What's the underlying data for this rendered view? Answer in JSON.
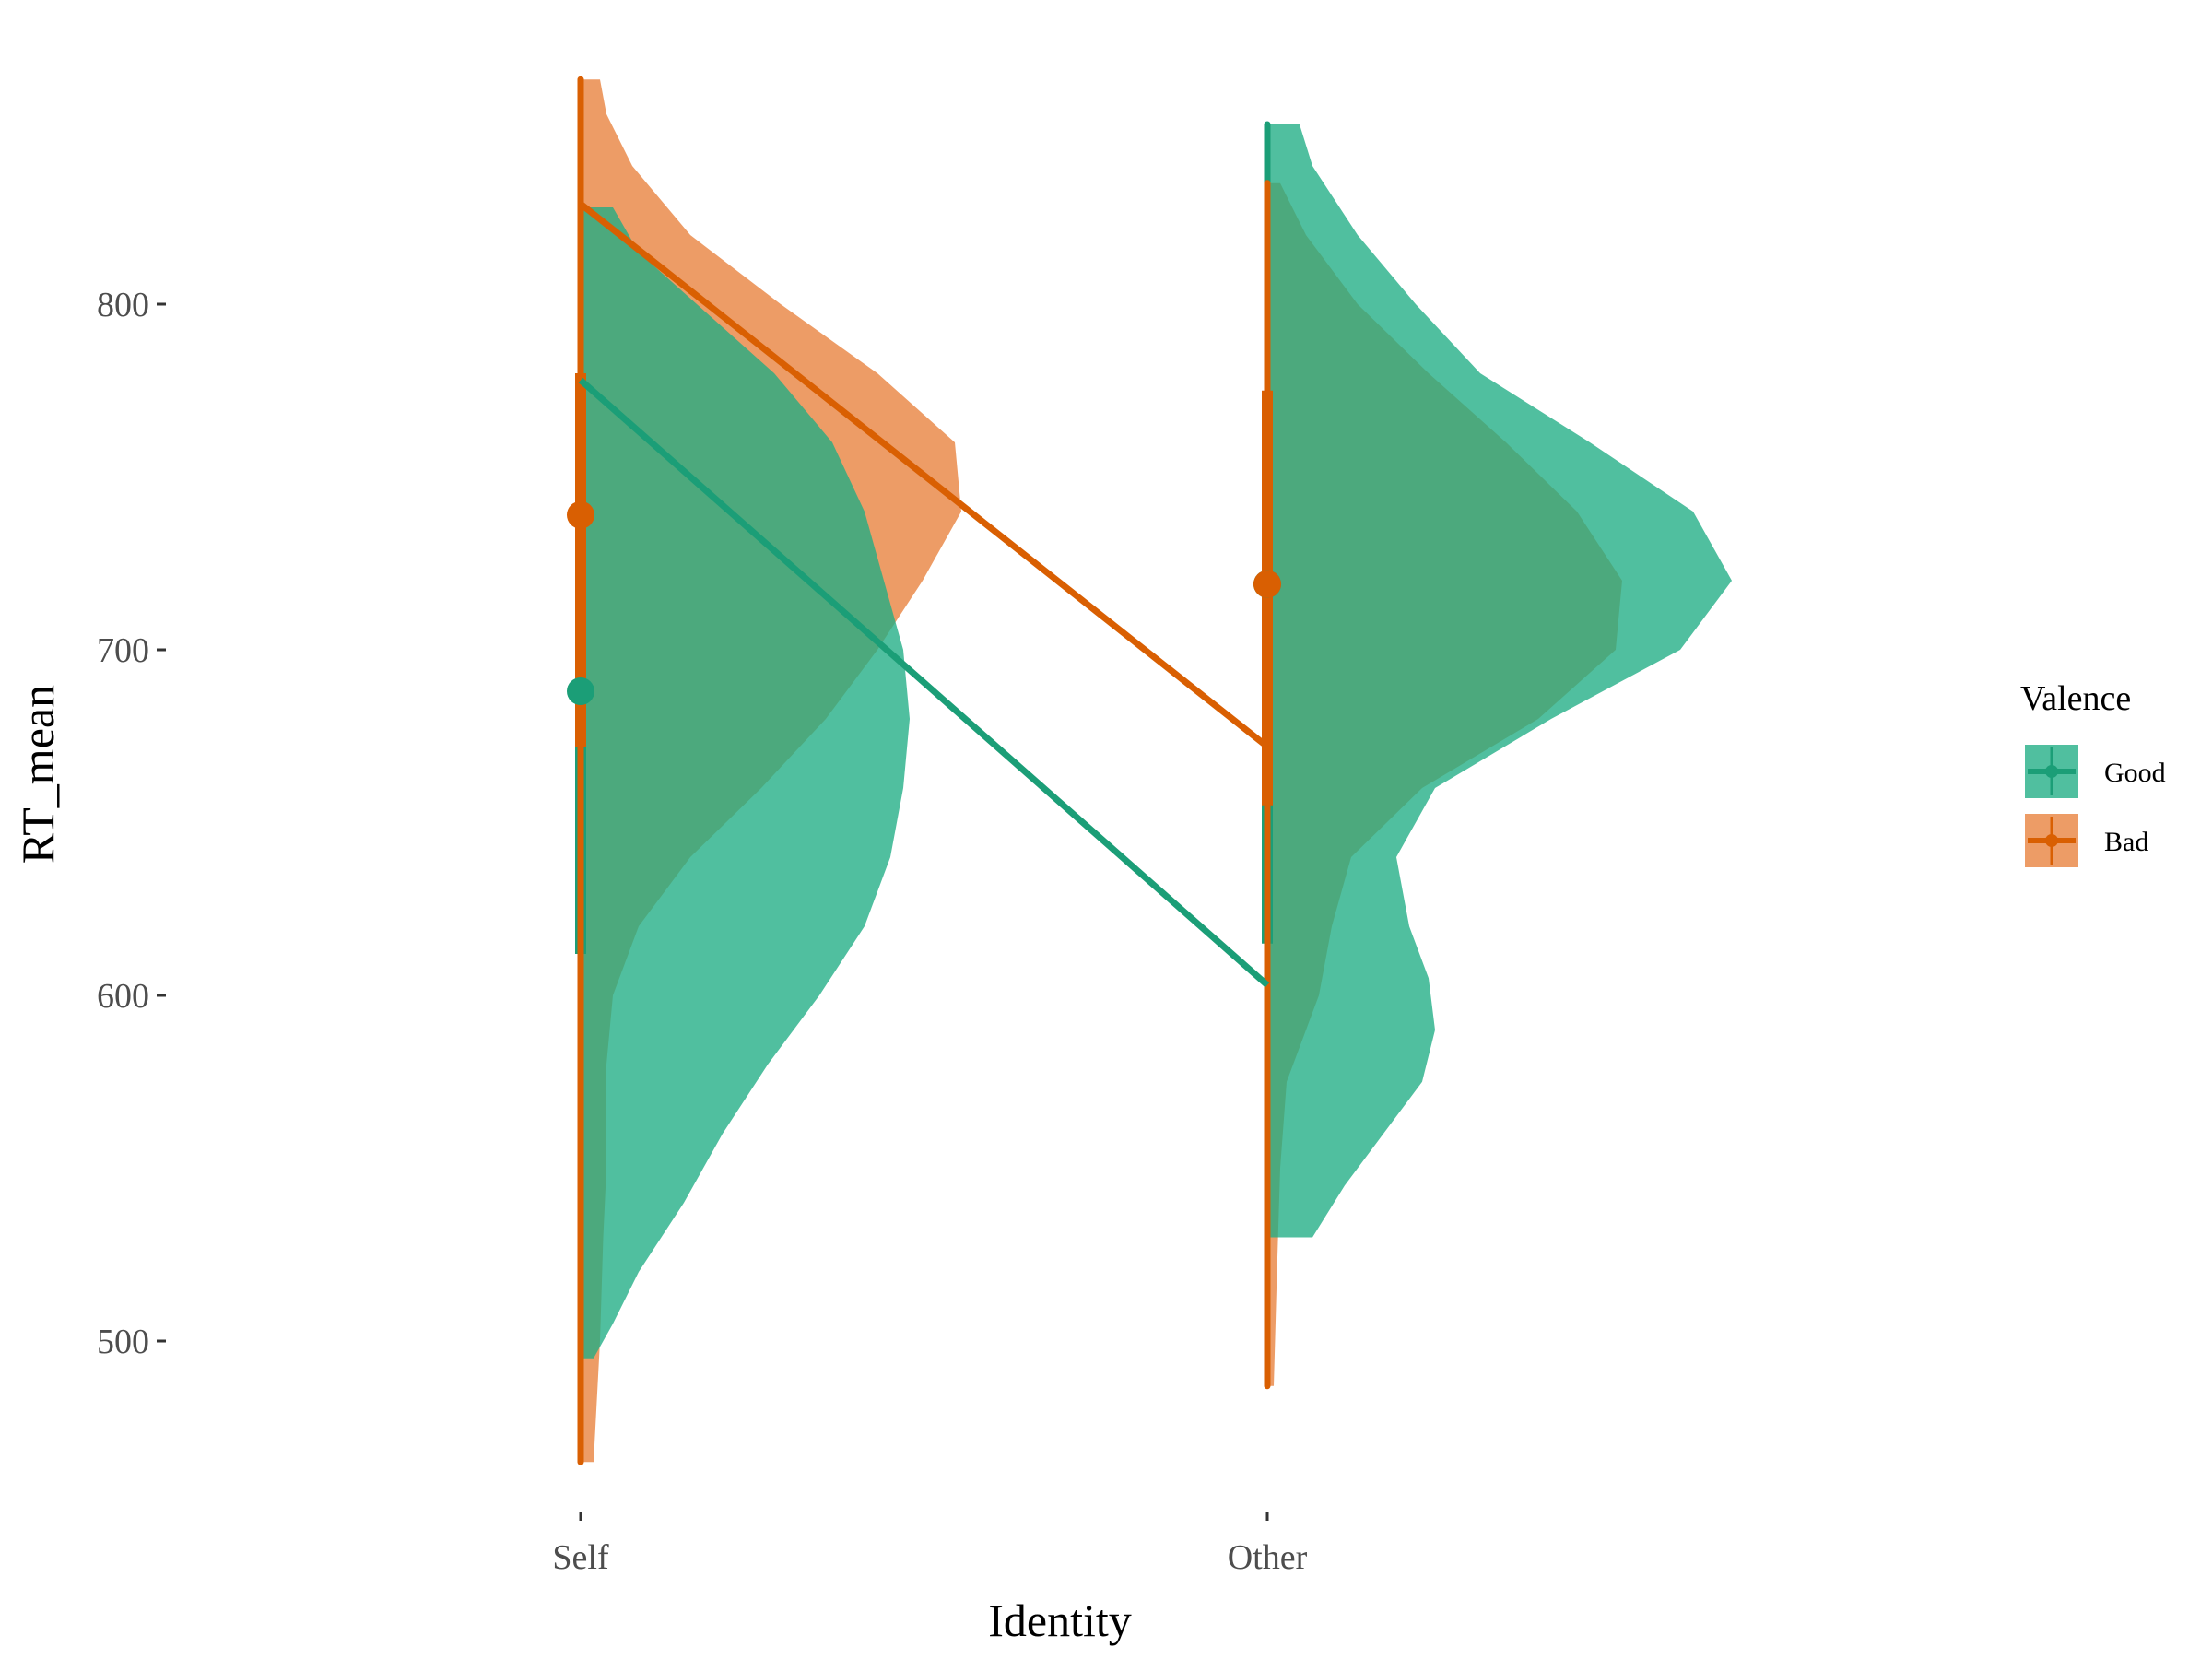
{
  "chart_data": {
    "type": "violin",
    "xlabel": "Identity",
    "ylabel": "RT_mean",
    "categories": [
      "Self",
      "Other"
    ],
    "y_ticks": [
      500,
      600,
      700,
      800
    ],
    "ylim": [
      445,
      870
    ],
    "grid": false,
    "legend": {
      "title": "Valence",
      "position": "right",
      "entries": [
        "Good",
        "Bad"
      ]
    },
    "series": [
      {
        "name": "Good",
        "color": "#1b9e77",
        "fill": "#1fad84",
        "means": [
          688,
          719
        ],
        "line_ends": [
          778,
          603
        ],
        "range_bar": [
          [
            612,
            750
          ],
          [
            615,
            765
          ]
        ],
        "range_full": [
          [
            495,
            828
          ],
          [
            530,
            852
          ]
        ],
        "density": [
          [
            [
              495,
              0.02
            ],
            [
              505,
              0.05
            ],
            [
              520,
              0.09
            ],
            [
              540,
              0.16
            ],
            [
              560,
              0.22
            ],
            [
              580,
              0.29
            ],
            [
              600,
              0.37
            ],
            [
              620,
              0.44
            ],
            [
              640,
              0.48
            ],
            [
              660,
              0.5
            ],
            [
              680,
              0.51
            ],
            [
              700,
              0.5
            ],
            [
              720,
              0.47
            ],
            [
              740,
              0.44
            ],
            [
              760,
              0.39
            ],
            [
              780,
              0.3
            ],
            [
              800,
              0.18
            ],
            [
              815,
              0.09
            ],
            [
              828,
              0.05
            ]
          ],
          [
            [
              530,
              0.07
            ],
            [
              545,
              0.12
            ],
            [
              560,
              0.18
            ],
            [
              575,
              0.24
            ],
            [
              590,
              0.26
            ],
            [
              605,
              0.25
            ],
            [
              620,
              0.22
            ],
            [
              640,
              0.2
            ],
            [
              660,
              0.26
            ],
            [
              680,
              0.44
            ],
            [
              700,
              0.64
            ],
            [
              720,
              0.72
            ],
            [
              740,
              0.66
            ],
            [
              760,
              0.5
            ],
            [
              780,
              0.33
            ],
            [
              800,
              0.23
            ],
            [
              820,
              0.14
            ],
            [
              840,
              0.07
            ],
            [
              852,
              0.05
            ]
          ]
        ]
      },
      {
        "name": "Bad",
        "color": "#d95f02",
        "fill": "#e8803b",
        "means": [
          739,
          719
        ],
        "line_ends": [
          829,
          672
        ],
        "range_bar": [
          [
            672,
            780
          ],
          [
            655,
            775
          ]
        ],
        "range_full": [
          [
            465,
            865
          ],
          [
            487,
            835
          ]
        ],
        "density": [
          [
            [
              465,
              0.02
            ],
            [
              500,
              0.03
            ],
            [
              530,
              0.035
            ],
            [
              550,
              0.04
            ],
            [
              565,
              0.04
            ],
            [
              580,
              0.04
            ],
            [
              600,
              0.05
            ],
            [
              620,
              0.09
            ],
            [
              640,
              0.17
            ],
            [
              660,
              0.28
            ],
            [
              680,
              0.38
            ],
            [
              700,
              0.46
            ],
            [
              720,
              0.53
            ],
            [
              740,
              0.59
            ],
            [
              760,
              0.58
            ],
            [
              780,
              0.46
            ],
            [
              800,
              0.31
            ],
            [
              820,
              0.17
            ],
            [
              840,
              0.08
            ],
            [
              855,
              0.04
            ],
            [
              865,
              0.03
            ]
          ],
          [
            [
              487,
              0.01
            ],
            [
              500,
              0.012
            ],
            [
              520,
              0.015
            ],
            [
              550,
              0.02
            ],
            [
              575,
              0.03
            ],
            [
              600,
              0.08
            ],
            [
              620,
              0.1
            ],
            [
              640,
              0.13
            ],
            [
              660,
              0.24
            ],
            [
              680,
              0.42
            ],
            [
              700,
              0.54
            ],
            [
              720,
              0.55
            ],
            [
              740,
              0.48
            ],
            [
              760,
              0.37
            ],
            [
              780,
              0.25
            ],
            [
              800,
              0.14
            ],
            [
              820,
              0.06
            ],
            [
              835,
              0.02
            ]
          ]
        ]
      }
    ]
  }
}
